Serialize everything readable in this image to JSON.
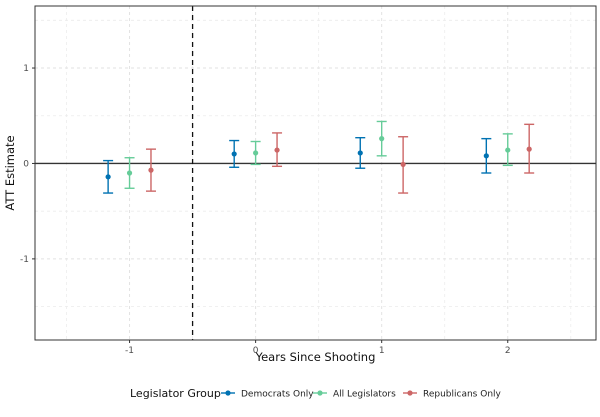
{
  "chart_data": {
    "type": "scatter",
    "subtype": "point-range",
    "xlabel": "Years Since Shooting",
    "ylabel": "ATT Estimate",
    "x_ticks": [
      -1,
      0,
      1,
      2
    ],
    "y_ticks": [
      -1,
      0,
      1
    ],
    "xlim": [
      -1.75,
      2.7
    ],
    "ylim": [
      -1.85,
      1.65
    ],
    "reference_hline": 0,
    "reference_vline": -0.5,
    "grid": true,
    "legend": {
      "title": "Legislator Group",
      "position": "bottom"
    },
    "series": [
      {
        "name": "Democrats Only",
        "color": "#0072B2",
        "offset": -0.17,
        "points": [
          {
            "x": -1,
            "y": -0.14,
            "lo": -0.31,
            "hi": 0.03
          },
          {
            "x": 0,
            "y": 0.1,
            "lo": -0.04,
            "hi": 0.24
          },
          {
            "x": 1,
            "y": 0.11,
            "lo": -0.05,
            "hi": 0.27
          },
          {
            "x": 2,
            "y": 0.08,
            "lo": -0.1,
            "hi": 0.26
          }
        ]
      },
      {
        "name": "All Legislators",
        "color": "#66CC99",
        "offset": 0,
        "points": [
          {
            "x": -1,
            "y": -0.1,
            "lo": -0.26,
            "hi": 0.06
          },
          {
            "x": 0,
            "y": 0.11,
            "lo": -0.01,
            "hi": 0.23
          },
          {
            "x": 1,
            "y": 0.26,
            "lo": 0.08,
            "hi": 0.44
          },
          {
            "x": 2,
            "y": 0.14,
            "lo": -0.02,
            "hi": 0.31
          }
        ]
      },
      {
        "name": "Republicans Only",
        "color": "#CC6666",
        "offset": 0.17,
        "points": [
          {
            "x": -1,
            "y": -0.07,
            "lo": -0.29,
            "hi": 0.15
          },
          {
            "x": 0,
            "y": 0.14,
            "lo": -0.03,
            "hi": 0.32
          },
          {
            "x": 1,
            "y": -0.01,
            "lo": -0.31,
            "hi": 0.28
          },
          {
            "x": 2,
            "y": 0.15,
            "lo": -0.1,
            "hi": 0.41
          }
        ]
      }
    ]
  }
}
